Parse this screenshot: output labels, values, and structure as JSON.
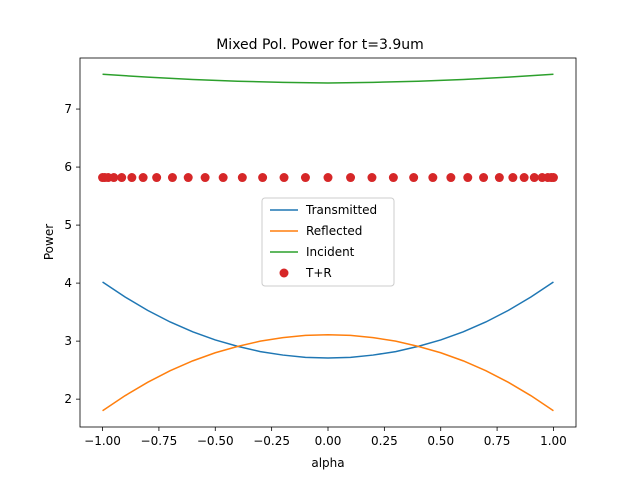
{
  "chart_data": {
    "type": "line",
    "title": "Mixed Pol. Power for t=3.9um",
    "xlabel": "alpha",
    "ylabel": "Power",
    "xlim": [
      -1.1,
      1.1
    ],
    "ylim": [
      1.52,
      7.88
    ],
    "xticks": [
      -1.0,
      -0.75,
      -0.5,
      -0.25,
      0.0,
      0.25,
      0.5,
      0.75,
      1.0
    ],
    "xtick_labels": [
      "−1.00",
      "−0.75",
      "−0.50",
      "−0.25",
      "0.00",
      "0.25",
      "0.50",
      "0.75",
      "1.00"
    ],
    "yticks": [
      2,
      3,
      4,
      5,
      6,
      7
    ],
    "ytick_labels": [
      "2",
      "3",
      "4",
      "5",
      "6",
      "7"
    ],
    "grid": false,
    "legend_position": "center",
    "series": [
      {
        "name": "Transmitted",
        "kind": "line",
        "color": "#1f77b4",
        "x": [
          -1.0,
          -0.9,
          -0.8,
          -0.7,
          -0.6,
          -0.5,
          -0.4,
          -0.3,
          -0.2,
          -0.1,
          0.0,
          0.1,
          0.2,
          0.3,
          0.4,
          0.5,
          0.6,
          0.7,
          0.8,
          0.9,
          1.0
        ],
        "y": [
          4.02,
          3.76,
          3.53,
          3.33,
          3.16,
          3.02,
          2.91,
          2.82,
          2.76,
          2.72,
          2.71,
          2.72,
          2.76,
          2.82,
          2.91,
          3.02,
          3.16,
          3.33,
          3.53,
          3.76,
          4.02
        ]
      },
      {
        "name": "Reflected",
        "kind": "line",
        "color": "#ff7f0e",
        "x": [
          -1.0,
          -0.9,
          -0.8,
          -0.7,
          -0.6,
          -0.5,
          -0.4,
          -0.3,
          -0.2,
          -0.1,
          0.0,
          0.1,
          0.2,
          0.3,
          0.4,
          0.5,
          0.6,
          0.7,
          0.8,
          0.9,
          1.0
        ],
        "y": [
          1.8,
          2.06,
          2.29,
          2.49,
          2.66,
          2.8,
          2.91,
          3.0,
          3.06,
          3.1,
          3.11,
          3.1,
          3.06,
          3.0,
          2.91,
          2.8,
          2.66,
          2.49,
          2.29,
          2.06,
          1.8
        ]
      },
      {
        "name": "Incident",
        "kind": "line",
        "color": "#2ca02c",
        "x": [
          -1.0,
          -0.8,
          -0.6,
          -0.4,
          -0.2,
          0.0,
          0.2,
          0.4,
          0.6,
          0.8,
          1.0
        ],
        "y": [
          7.6,
          7.55,
          7.51,
          7.48,
          7.46,
          7.45,
          7.46,
          7.48,
          7.51,
          7.55,
          7.6
        ]
      },
      {
        "name": "T+R",
        "kind": "scatter",
        "color": "#d62728",
        "x": [
          -1.0,
          -0.99,
          -0.975,
          -0.95,
          -0.915,
          -0.87,
          -0.82,
          -0.76,
          -0.69,
          -0.62,
          -0.545,
          -0.465,
          -0.38,
          -0.29,
          -0.195,
          -0.1,
          0.0,
          0.1,
          0.195,
          0.29,
          0.38,
          0.465,
          0.545,
          0.62,
          0.69,
          0.76,
          0.82,
          0.87,
          0.915,
          0.95,
          0.975,
          0.99,
          1.0
        ],
        "y": [
          5.82,
          5.82,
          5.82,
          5.82,
          5.82,
          5.82,
          5.82,
          5.82,
          5.82,
          5.82,
          5.82,
          5.82,
          5.82,
          5.82,
          5.82,
          5.82,
          5.82,
          5.82,
          5.82,
          5.82,
          5.82,
          5.82,
          5.82,
          5.82,
          5.82,
          5.82,
          5.82,
          5.82,
          5.82,
          5.82,
          5.82,
          5.82,
          5.82
        ]
      }
    ]
  }
}
